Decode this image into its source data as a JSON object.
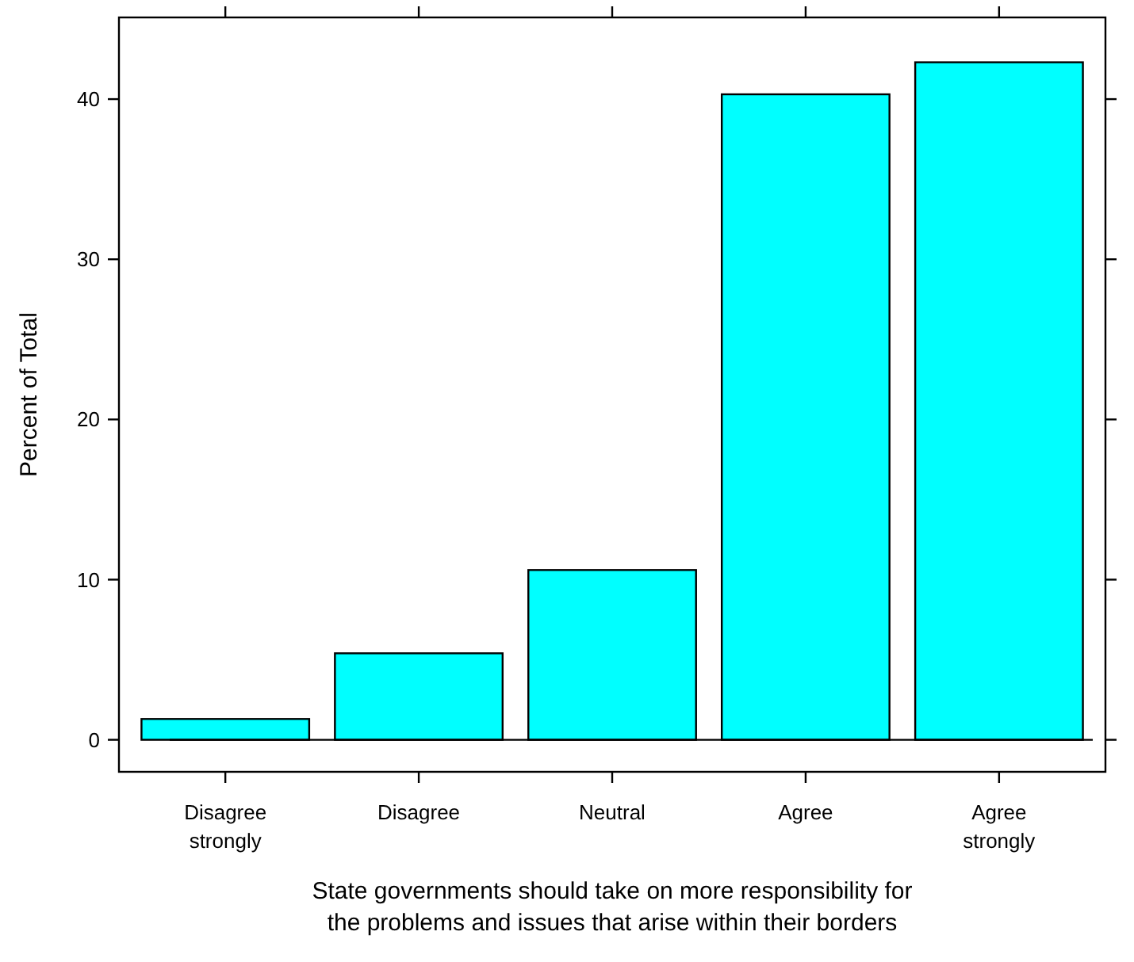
{
  "chart_data": {
    "type": "bar",
    "xlabel": "State governments should take on more responsibility for\nthe problems and issues that arise within their borders",
    "ylabel": "Percent of Total",
    "categories": [
      "Disagree\nstrongly",
      "Disagree",
      "Neutral",
      "Agree",
      "Agree\nstrongly"
    ],
    "values": [
      1.3,
      5.4,
      10.6,
      40.3,
      42.3
    ],
    "color": "#00ffff",
    "ylim": [
      -2.0,
      45.1
    ],
    "yticks": [
      0,
      10,
      20,
      30,
      40
    ],
    "ref_lines": [
      {
        "axis": "y",
        "value": 0
      }
    ]
  }
}
